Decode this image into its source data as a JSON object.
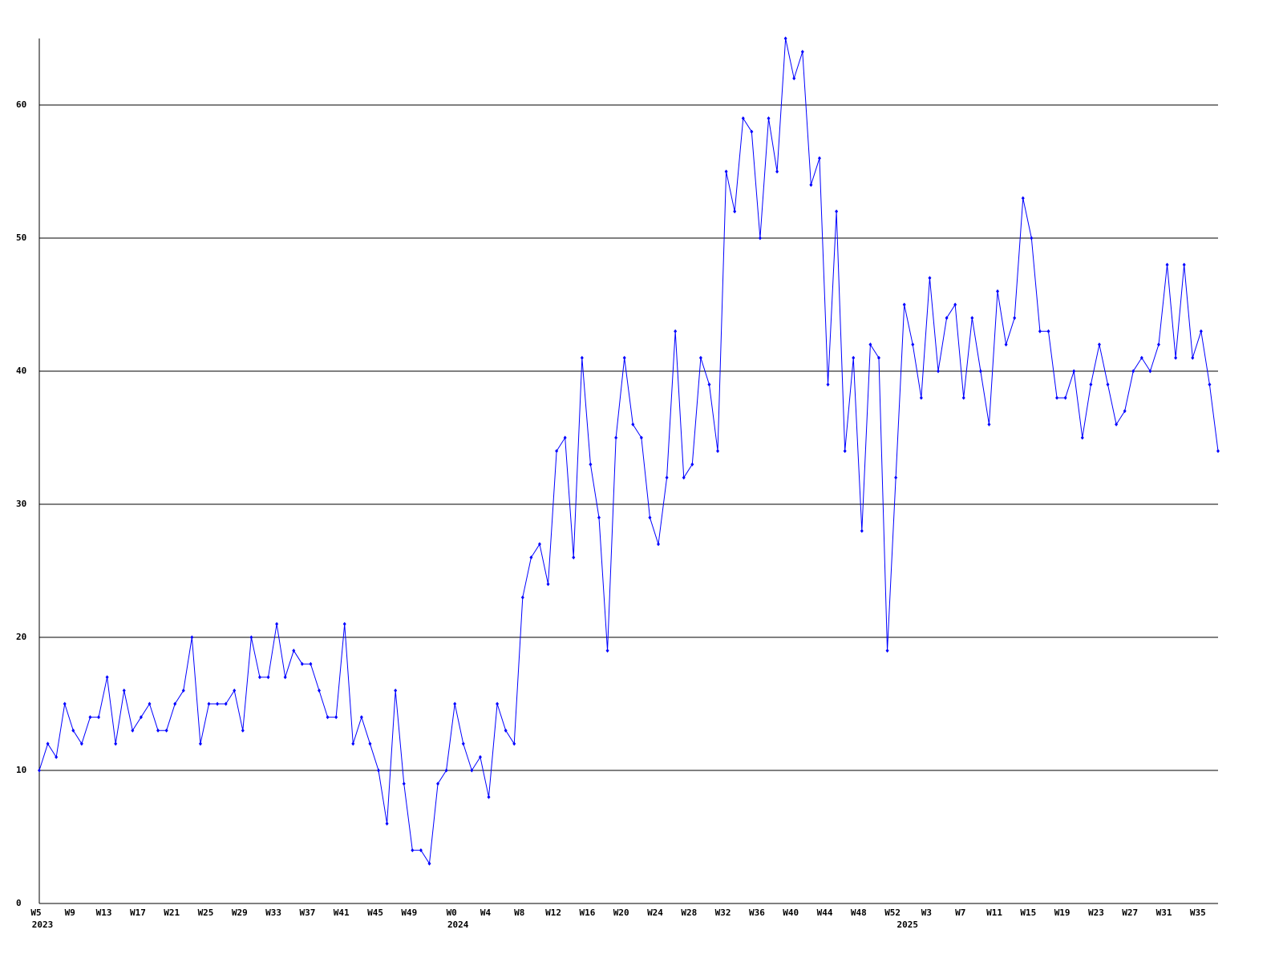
{
  "chart_data": {
    "type": "line",
    "categories": [
      "W5",
      null,
      null,
      null,
      "W9",
      null,
      null,
      null,
      "W13",
      null,
      null,
      null,
      "W17",
      null,
      null,
      null,
      "W21",
      null,
      null,
      null,
      "W25",
      null,
      null,
      null,
      "W29",
      null,
      null,
      null,
      "W33",
      null,
      null,
      null,
      "W37",
      null,
      null,
      null,
      "W41",
      null,
      null,
      null,
      "W45",
      null,
      null,
      null,
      "W49",
      null,
      null,
      null,
      null,
      "W0",
      null,
      null,
      null,
      "W4",
      null,
      null,
      null,
      "W8",
      null,
      null,
      null,
      "W12",
      null,
      null,
      null,
      "W16",
      null,
      null,
      null,
      "W20",
      null,
      null,
      null,
      "W24",
      null,
      null,
      null,
      "W28",
      null,
      null,
      null,
      "W32",
      null,
      null,
      null,
      "W36",
      null,
      null,
      null,
      "W40",
      null,
      null,
      null,
      "W44",
      null,
      null,
      null,
      "W48",
      null,
      null,
      null,
      "W52",
      null,
      null,
      null,
      "W3",
      null,
      null,
      null,
      "W7",
      null,
      null,
      null,
      "W11",
      null,
      null,
      null,
      "W15",
      null,
      null,
      null,
      "W19",
      null,
      null,
      null,
      "W23",
      null,
      null,
      null,
      "W27",
      null,
      null,
      null,
      "W31",
      null,
      null,
      null,
      "W35",
      null,
      null
    ],
    "year_labels": [
      "2023",
      null,
      null,
      null,
      null,
      null,
      null,
      null,
      null,
      null,
      null,
      null,
      null,
      null,
      null,
      null,
      null,
      null,
      null,
      null,
      null,
      null,
      null,
      null,
      null,
      null,
      null,
      null,
      null,
      null,
      null,
      null,
      null,
      null,
      null,
      null,
      null,
      null,
      null,
      null,
      null,
      null,
      null,
      null,
      null,
      null,
      null,
      null,
      null,
      "2024",
      null,
      null,
      null,
      null,
      null,
      null,
      null,
      null,
      null,
      null,
      null,
      null,
      null,
      null,
      null,
      null,
      null,
      null,
      null,
      null,
      null,
      null,
      null,
      null,
      null,
      null,
      null,
      null,
      null,
      null,
      null,
      null,
      null,
      null,
      null,
      null,
      null,
      null,
      null,
      null,
      null,
      null,
      null,
      null,
      null,
      null,
      null,
      null,
      null,
      null,
      null,
      null,
      "2025",
      null,
      null,
      null,
      null,
      null,
      null,
      null,
      null,
      null,
      null,
      null,
      null,
      null,
      null,
      null,
      null,
      null,
      null,
      null,
      null,
      null,
      null,
      null,
      null,
      null,
      null,
      null,
      null,
      null,
      null,
      null,
      null,
      null,
      null,
      null,
      null
    ],
    "values": [
      10,
      12,
      11,
      15,
      13,
      12,
      14,
      14,
      17,
      12,
      16,
      13,
      14,
      15,
      13,
      13,
      15,
      16,
      20,
      12,
      15,
      15,
      15,
      16,
      13,
      20,
      17,
      17,
      21,
      17,
      19,
      18,
      18,
      16,
      14,
      14,
      21,
      12,
      14,
      12,
      10,
      6,
      16,
      9,
      4,
      4,
      3,
      9,
      10,
      15,
      12,
      10,
      11,
      8,
      15,
      13,
      12,
      23,
      26,
      27,
      24,
      34,
      35,
      26,
      41,
      33,
      29,
      19,
      35,
      41,
      36,
      35,
      29,
      27,
      32,
      43,
      32,
      33,
      41,
      39,
      34,
      55,
      52,
      59,
      58,
      50,
      59,
      55,
      65,
      62,
      64,
      54,
      56,
      39,
      52,
      34,
      41,
      28,
      42,
      41,
      19,
      32,
      45,
      42,
      38,
      47,
      40,
      44,
      45,
      38,
      44,
      40,
      36,
      46,
      42,
      44,
      53,
      50,
      43,
      43,
      38,
      38,
      40,
      35,
      39,
      42,
      39,
      36,
      37,
      40,
      41,
      40,
      42,
      48,
      41,
      48,
      41,
      43,
      39,
      34
    ],
    "color": "#0000ff",
    "ylim": [
      0,
      65
    ],
    "yticks": [
      0,
      10,
      20,
      30,
      40,
      50,
      60
    ],
    "grid": true
  }
}
